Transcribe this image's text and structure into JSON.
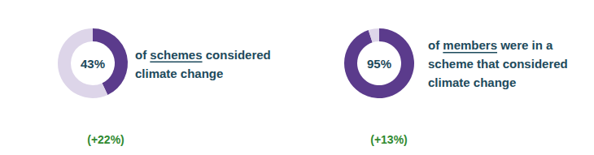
{
  "chart_data": [
    {
      "type": "donut",
      "values": [
        43,
        57
      ],
      "value_labels": [
        "43%",
        null
      ],
      "colors": [
        "#5b3b8c",
        "#ddd5e9"
      ],
      "label": [
        [
          "of ",
          "schemes",
          " considered"
        ],
        [
          "climate change"
        ]
      ],
      "change": {
        "value": 22,
        "label": "(+22%)"
      }
    },
    {
      "type": "donut",
      "values": [
        95,
        5
      ],
      "value_labels": [
        "95%",
        null
      ],
      "colors": [
        "#5b3b8c",
        "#ddd5e9"
      ],
      "label": [
        [
          "of ",
          "members",
          " were in a"
        ],
        [
          "scheme that considered"
        ],
        [
          "climate change"
        ]
      ],
      "change": {
        "value": 13,
        "label": "(+13%)"
      }
    }
  ]
}
